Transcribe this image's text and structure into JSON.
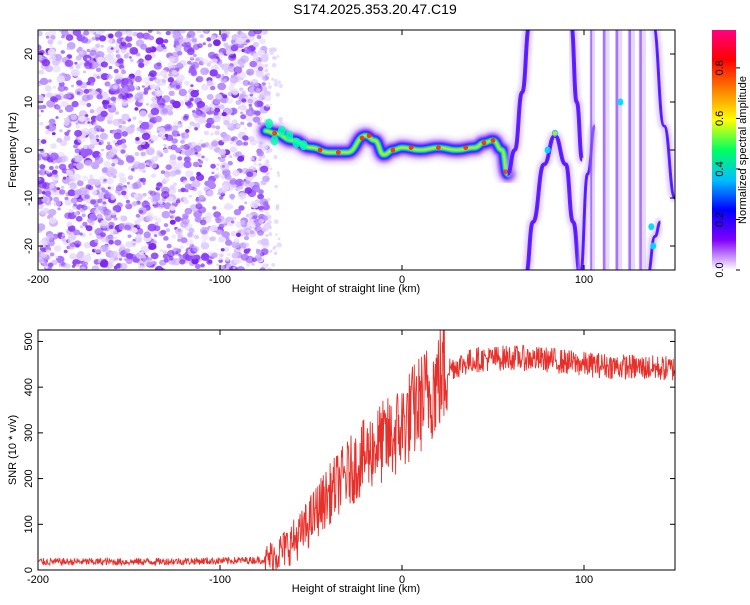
{
  "title": "S174.2025.353.20.47.C19",
  "chart_data": [
    {
      "type": "heatmap",
      "xlabel": "Height of straight line (km)",
      "ylabel": "Frequency (Hz)",
      "xlim": [
        -200,
        150
      ],
      "ylim": [
        -25,
        25
      ],
      "x_ticks": [
        -200,
        -100,
        0,
        100
      ],
      "x_tick_labels": [
        "-200",
        "-100",
        "0",
        "100"
      ],
      "y_ticks": [
        -20,
        -10,
        0,
        10,
        20
      ],
      "y_tick_labels": [
        "-20",
        "-10",
        "0",
        "10",
        "20"
      ],
      "colorbar": {
        "label": "Normalized spectral amplitude",
        "range": [
          0,
          0.95
        ],
        "ticks": [
          0,
          0.2,
          0.4,
          0.6,
          0.8
        ],
        "tick_labels": [
          "0.0",
          "0.2",
          "0.4",
          "0.6",
          "0.8"
        ],
        "colors": [
          "#ffffff",
          "#8000ff",
          "#0000ff",
          "#00c0ff",
          "#00ff60",
          "#ffff00",
          "#ff8000",
          "#ff0000",
          "#ff0080"
        ]
      },
      "main_trace": {
        "x": [
          -75,
          -70,
          -60,
          -50,
          -40,
          -30,
          -20,
          -15,
          -10,
          -5,
          0,
          10,
          20,
          30,
          40,
          45,
          50,
          55,
          58
        ],
        "y": [
          4,
          3.5,
          2,
          0.5,
          -0.5,
          -0.5,
          3,
          2,
          -1,
          0,
          0.5,
          0,
          0.5,
          0,
          0.5,
          1.5,
          2,
          0,
          -5
        ]
      }
    },
    {
      "type": "line",
      "xlabel": "Height of straight line (km)",
      "ylabel": "SNR (10 * v/v)",
      "xlim": [
        -200,
        150
      ],
      "ylim": [
        0,
        525
      ],
      "x_ticks": [
        -200,
        -100,
        0,
        100
      ],
      "x_tick_labels": [
        "-200",
        "-100",
        "0",
        "100"
      ],
      "y_ticks": [
        0,
        100,
        200,
        300,
        400,
        500
      ],
      "y_tick_labels": [
        "0",
        "100",
        "200",
        "300",
        "400",
        "500"
      ],
      "line_color": "#e8302a",
      "series": [
        {
          "name": "SNR",
          "x": [
            -200,
            -150,
            -100,
            -75,
            -65,
            -55,
            -45,
            -35,
            -25,
            -15,
            -5,
            5,
            15,
            25,
            40,
            60,
            80,
            100,
            120,
            150
          ],
          "y": [
            18,
            18,
            20,
            22,
            45,
            80,
            140,
            190,
            230,
            270,
            290,
            340,
            390,
            440,
            460,
            465,
            460,
            450,
            445,
            440
          ]
        }
      ]
    }
  ]
}
